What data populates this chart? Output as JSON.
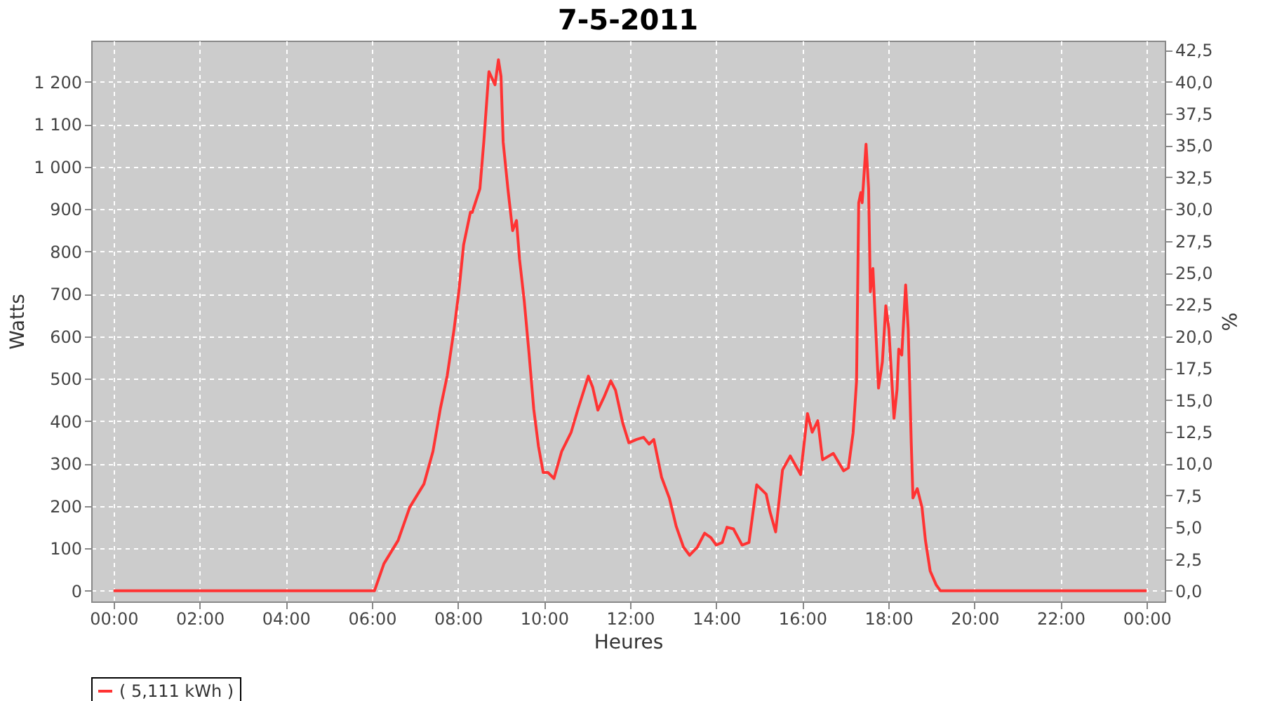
{
  "chart_data": {
    "type": "line",
    "title": "7-5-2011",
    "xlabel": "Heures",
    "ylabel": "Watts",
    "y2label": "%",
    "x": [
      0,
      6.06,
      6.28,
      6.61,
      6.88,
      7.21,
      7.42,
      7.59,
      7.75,
      7.91,
      8.02,
      8.13,
      8.29,
      8.33,
      8.51,
      8.6,
      8.71,
      8.72,
      8.86,
      8.94,
      9.0,
      9.05,
      9.16,
      9.27,
      9.36,
      9.43,
      9.54,
      9.65,
      9.76,
      9.87,
      9.98,
      10.09,
      10.23,
      10.41,
      10.63,
      10.79,
      11.03,
      11.13,
      11.25,
      11.39,
      11.55,
      11.66,
      11.83,
      11.97,
      12.15,
      12.31,
      12.44,
      12.55,
      12.73,
      12.91,
      13.07,
      13.24,
      13.38,
      13.56,
      13.73,
      13.88,
      14.0,
      14.14,
      14.25,
      14.4,
      14.6,
      14.76,
      14.94,
      15.16,
      15.25,
      15.38,
      15.54,
      15.72,
      15.96,
      16.12,
      16.23,
      16.36,
      16.47,
      16.72,
      16.96,
      17.07,
      17.18,
      17.26,
      17.31,
      17.36,
      17.39,
      17.48,
      17.54,
      17.58,
      17.64,
      17.69,
      17.77,
      17.86,
      17.94,
      18.01,
      18.13,
      18.2,
      18.24,
      18.31,
      18.4,
      18.46,
      18.53,
      18.57,
      18.67,
      18.78,
      18.86,
      18.97,
      19.11,
      19.21,
      24
    ],
    "series": [
      {
        "name": "( 5,111 kWh )",
        "color": "#ff3333",
        "values": [
          0,
          0,
          64,
          119,
          197,
          252,
          329,
          429,
          507,
          617,
          705,
          815,
          893,
          892,
          948,
          1058,
          1213,
          1224,
          1193,
          1252,
          1213,
          1058,
          948,
          849,
          873,
          782,
          683,
          561,
          429,
          341,
          279,
          279,
          265,
          329,
          374,
          429,
          506,
          480,
          426,
          456,
          495,
          473,
          395,
          349,
          357,
          362,
          346,
          357,
          268,
          219,
          152,
          103,
          84,
          103,
          136,
          125,
          108,
          114,
          150,
          146,
          108,
          114,
          250,
          228,
          186,
          139,
          285,
          318,
          274,
          418,
          374,
          401,
          309,
          324,
          283,
          290,
          373,
          495,
          915,
          939,
          915,
          1053,
          948,
          705,
          760,
          650,
          478,
          540,
          672,
          617,
          407,
          474,
          570,
          556,
          721,
          617,
          351,
          219,
          241,
          197,
          119,
          47,
          14,
          0,
          0
        ]
      }
    ],
    "xlim": [
      -0.52,
      24.42
    ],
    "xticks": [
      {
        "value": 0,
        "label": "00:00"
      },
      {
        "value": 2,
        "label": "02:00"
      },
      {
        "value": 4,
        "label": "04:00"
      },
      {
        "value": 6,
        "label": "06:00"
      },
      {
        "value": 8,
        "label": "08:00"
      },
      {
        "value": 10,
        "label": "10:00"
      },
      {
        "value": 12,
        "label": "12:00"
      },
      {
        "value": 14,
        "label": "14:00"
      },
      {
        "value": 16,
        "label": "16:00"
      },
      {
        "value": 18,
        "label": "18:00"
      },
      {
        "value": 20,
        "label": "20:00"
      },
      {
        "value": 22,
        "label": "22:00"
      },
      {
        "value": 24,
        "label": "00:00"
      }
    ],
    "ylim": [
      -25,
      1297
    ],
    "yticks": [
      0,
      100,
      200,
      300,
      400,
      500,
      600,
      700,
      800,
      900,
      {
        "value": 1000,
        "label": "1 000"
      },
      {
        "value": 1100,
        "label": "1 100"
      },
      {
        "value": 1200,
        "label": "1 200"
      }
    ],
    "y2lim": [
      -0.83,
      43.23
    ],
    "y2ticks": [
      {
        "value": 0,
        "label": "0,0"
      },
      {
        "value": 2.5,
        "label": "2,5"
      },
      {
        "value": 5,
        "label": "5,0"
      },
      {
        "value": 7.5,
        "label": "7,5"
      },
      {
        "value": 10,
        "label": "10,0"
      },
      {
        "value": 12.5,
        "label": "12,5"
      },
      {
        "value": 15,
        "label": "15,0"
      },
      {
        "value": 17.5,
        "label": "17,5"
      },
      {
        "value": 20,
        "label": "20,0"
      },
      {
        "value": 22.5,
        "label": "22,5"
      },
      {
        "value": 25,
        "label": "25,0"
      },
      {
        "value": 27.5,
        "label": "27,5"
      },
      {
        "value": 30,
        "label": "30,0"
      },
      {
        "value": 32.5,
        "label": "32,5"
      },
      {
        "value": 35,
        "label": "35,0"
      },
      {
        "value": 37.5,
        "label": "37,5"
      },
      {
        "value": 40,
        "label": "40,0"
      },
      {
        "value": 42.5,
        "label": "42,5"
      }
    ],
    "grid": true,
    "legend": "bottom",
    "marker": "none",
    "line_style": "solid"
  }
}
